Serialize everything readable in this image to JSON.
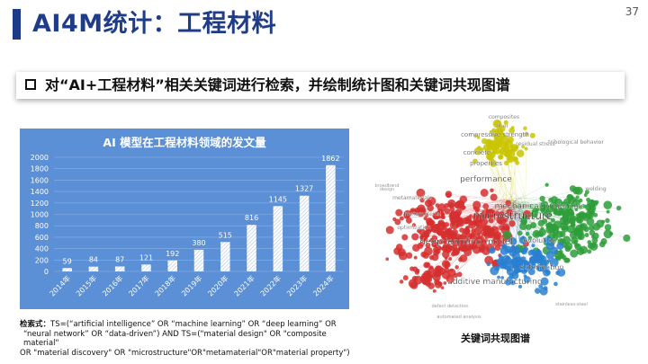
{
  "slide": {
    "title": "AI4M统计：工程材料",
    "page_number": "37",
    "accent_color": "#1e3a8a",
    "banner_text": "对“AI+工程材料”相关关键词进行检索，并绘制统计图和关键词共现图谱"
  },
  "chart_data": {
    "type": "bar",
    "title": "AI 模型在工程材料领域的发文量",
    "categories": [
      "2014年",
      "2015年",
      "2016年",
      "2017年",
      "2018年",
      "2019年",
      "2020年",
      "2021年",
      "2022年",
      "2023年",
      "2024年"
    ],
    "values": [
      59,
      84,
      87,
      121,
      192,
      380,
      515,
      816,
      1145,
      1327,
      1862
    ],
    "ylim": [
      0,
      2000
    ],
    "yticks": [
      0,
      200,
      400,
      600,
      800,
      1000,
      1200,
      1400,
      1600,
      1800,
      2000
    ],
    "background": "#5b8fd6",
    "bar_color": "#ffffff",
    "grid": true
  },
  "query": {
    "label": "检索式：",
    "lines": [
      "TS=(“artificial intelligence” OR “machine learning” OR “deep learning” OR",
      "“neural network” OR “data-driven”) AND TS=(\"material design\" OR \"composite material\"",
      "OR \"material discovery\" OR \"microstructure\"OR\"metamaterial\"OR\"material property\")"
    ]
  },
  "network": {
    "caption": "关键词共现图谱",
    "keywords": [
      {
        "text": "composites",
        "color": "#b5b800"
      },
      {
        "text": "fiber",
        "color": "#b5b800"
      },
      {
        "text": "compressive strength",
        "color": "#b5b800"
      },
      {
        "text": "residual stress",
        "color": "#b5b800"
      },
      {
        "text": "tribological behavior",
        "color": "#2e7d32"
      },
      {
        "text": "concrete",
        "color": "#b5b800"
      },
      {
        "text": "properties",
        "color": "#b5b800"
      },
      {
        "text": "mechanical-properties",
        "color": "#2e7d32"
      },
      {
        "text": "welding",
        "color": "#2e7d32"
      },
      {
        "text": "performance",
        "color": "#c62828"
      },
      {
        "text": "microstructure",
        "color": "#c62828"
      },
      {
        "text": "metamaterials",
        "color": "#c62828"
      },
      {
        "text": "metamaterial",
        "color": "#c62828"
      },
      {
        "text": "deep learning model",
        "color": "#c62828"
      },
      {
        "text": "evolution",
        "color": "#1565c0"
      },
      {
        "text": "deformation",
        "color": "#1565c0"
      },
      {
        "text": "additive manufacturing",
        "color": "#c62828"
      },
      {
        "text": "defect detection",
        "color": "#1565c0"
      },
      {
        "text": "automated analysis",
        "color": "#1565c0"
      },
      {
        "text": "design",
        "color": "#c62828"
      },
      {
        "text": "optimization",
        "color": "#c62828"
      },
      {
        "text": "broadband",
        "color": "#c62828"
      },
      {
        "text": "stainless-steel",
        "color": "#1565c0"
      }
    ]
  }
}
